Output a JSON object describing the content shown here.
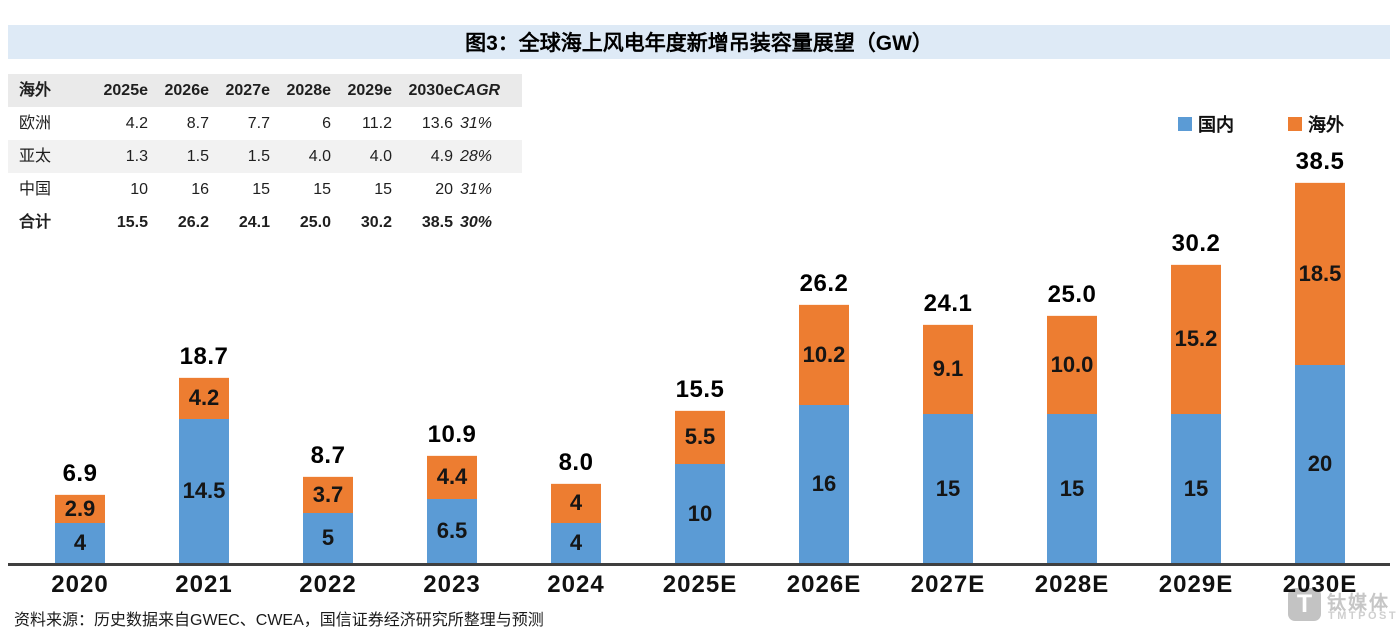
{
  "title": "图3：全球海上风电年度新增吊装容量展望（GW）",
  "table": {
    "headers": [
      "海外",
      "2025e",
      "2026e",
      "2027e",
      "2028e",
      "2029e",
      "2030e",
      "CAGR"
    ],
    "rows": [
      {
        "label": "欧洲",
        "values": [
          "4.2",
          "8.7",
          "7.7",
          "6",
          "11.2",
          "13.6"
        ],
        "cagr": "31%",
        "is_total": false,
        "shaded": false
      },
      {
        "label": "亚太",
        "values": [
          "1.3",
          "1.5",
          "1.5",
          "4.0",
          "4.0",
          "4.9"
        ],
        "cagr": "28%",
        "is_total": false,
        "shaded": true
      },
      {
        "label": "中国",
        "values": [
          "10",
          "16",
          "15",
          "15",
          "15",
          "20"
        ],
        "cagr": "31%",
        "is_total": false,
        "shaded": false
      },
      {
        "label": "合计",
        "values": [
          "15.5",
          "26.2",
          "24.1",
          "25.0",
          "30.2",
          "38.5"
        ],
        "cagr": "30%",
        "is_total": true,
        "shaded": false
      }
    ]
  },
  "legend": [
    {
      "label": "国内",
      "color": "#5B9BD5"
    },
    {
      "label": "海外",
      "color": "#ED7D31"
    }
  ],
  "chart_data": {
    "type": "bar",
    "stacked": true,
    "unit": "GW",
    "grid": false,
    "legend_position": "top-right",
    "ylim": [
      0,
      45
    ],
    "title": "图3：全球海上风电年度新增吊装容量展望（GW）",
    "categories": [
      "2020",
      "2021",
      "2022",
      "2023",
      "2024",
      "2025E",
      "2026E",
      "2027E",
      "2028E",
      "2029E",
      "2030E"
    ],
    "series": [
      {
        "name": "国内",
        "color": "#5B9BD5",
        "values": [
          4,
          14.5,
          5,
          6.5,
          4,
          10,
          16,
          15,
          15,
          15,
          20
        ],
        "labels": [
          "4",
          "14.5",
          "5",
          "6.5",
          "4",
          "10",
          "16",
          "15",
          "15",
          "15",
          "20"
        ]
      },
      {
        "name": "海外",
        "color": "#ED7D31",
        "values": [
          2.9,
          4.2,
          3.7,
          4.4,
          4,
          5.5,
          10.2,
          9.1,
          10,
          15.2,
          18.5
        ],
        "labels": [
          "2.9",
          "4.2",
          "3.7",
          "4.4",
          "4",
          "5.5",
          "10.2",
          "9.1",
          "10.0",
          "15.2",
          "18.5"
        ]
      }
    ],
    "totals": [
      "6.9",
      "18.7",
      "8.7",
      "10.9",
      "8.0",
      "15.5",
      "26.2",
      "24.1",
      "25.0",
      "30.2",
      "38.5"
    ]
  },
  "source": "资料来源：历史数据来自GWEC、CWEA，国信证券经济研究所整理与预测",
  "watermark": {
    "cn": "钛媒体",
    "en": "TMTPOST"
  },
  "colors": {
    "domestic": "#5B9BD5",
    "overseas": "#ED7D31",
    "title_bg": "#DEEAF6",
    "axis": "#3F3F3F",
    "table_header_bg": "#EAEAEA",
    "table_shaded_bg": "#F2F2F2"
  }
}
